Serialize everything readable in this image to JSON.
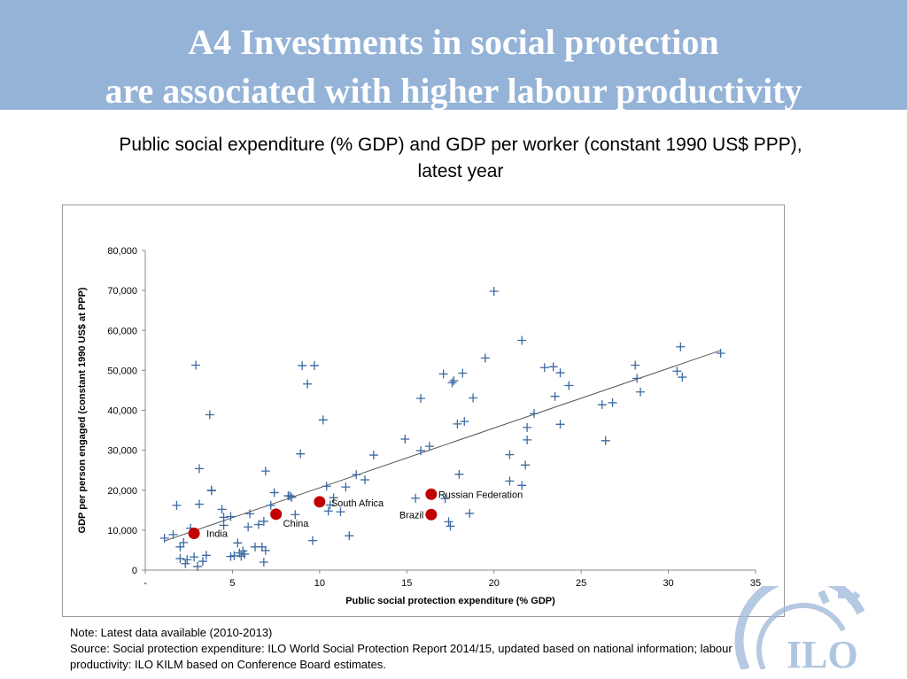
{
  "slide": {
    "title_line1": "A4   Investments in social protection",
    "title_line2": "are associated with higher labour productivity",
    "subtitle_line1": "Public social expenditure (% GDP) and GDP per worker (constant 1990 US$ PPP),",
    "subtitle_line2": "latest year",
    "note_line1": "Note:  Latest data available (2010-2013)",
    "note_line2": "Source: Social protection expenditure: ILO World Social Protection Report 2014/15, updated based on national information; labour",
    "note_line3": "productivity: ILO KILM based on Conference Board estimates.",
    "logo_text": "ILO"
  },
  "colors": {
    "banner": "#95b3d7",
    "marker": "#3b6aa0",
    "highlight": "#c00000",
    "trendline": "#555555"
  },
  "chart_data": {
    "type": "scatter",
    "xlabel": "Public social protection expenditure (% GDP)",
    "ylabel": "GDP per person engaged (constant 1990 US$ at PPP)",
    "xlim": [
      0,
      35
    ],
    "ylim": [
      0,
      80000
    ],
    "x_ticks": [
      {
        "value": 0,
        "label": "-"
      },
      {
        "value": 5,
        "label": "5"
      },
      {
        "value": 10,
        "label": "10"
      },
      {
        "value": 15,
        "label": "15"
      },
      {
        "value": 20,
        "label": "20"
      },
      {
        "value": 25,
        "label": "25"
      },
      {
        "value": 30,
        "label": "30"
      },
      {
        "value": 35,
        "label": "35"
      }
    ],
    "y_ticks": [
      {
        "value": 0,
        "label": "0"
      },
      {
        "value": 10000,
        "label": "10,000"
      },
      {
        "value": 20000,
        "label": "20,000"
      },
      {
        "value": 30000,
        "label": "30,000"
      },
      {
        "value": 40000,
        "label": "40,000"
      },
      {
        "value": 50000,
        "label": "50,000"
      },
      {
        "value": 60000,
        "label": "60,000"
      },
      {
        "value": 70000,
        "label": "70,000"
      },
      {
        "value": 80000,
        "label": "80,000"
      }
    ],
    "trendline": {
      "x": [
        1.1,
        33
      ],
      "y": [
        7300,
        55000
      ]
    },
    "points": [
      [
        1.1,
        8000
      ],
      [
        1.6,
        8900
      ],
      [
        1.8,
        16200
      ],
      [
        2.0,
        5800
      ],
      [
        2.0,
        2900
      ],
      [
        2.2,
        6900
      ],
      [
        2.3,
        1600
      ],
      [
        2.4,
        2600
      ],
      [
        2.6,
        10500
      ],
      [
        2.8,
        3300
      ],
      [
        2.9,
        51300
      ],
      [
        3.0,
        900
      ],
      [
        3.1,
        16500
      ],
      [
        3.1,
        25400
      ],
      [
        3.3,
        2200
      ],
      [
        3.5,
        3700
      ],
      [
        3.7,
        38900
      ],
      [
        3.8,
        19900
      ],
      [
        3.8,
        20000
      ],
      [
        4.4,
        15200
      ],
      [
        4.5,
        11200
      ],
      [
        4.5,
        13200
      ],
      [
        4.9,
        3400
      ],
      [
        4.9,
        13400
      ],
      [
        5.1,
        3600
      ],
      [
        5.3,
        6800
      ],
      [
        5.4,
        4300
      ],
      [
        5.5,
        3500
      ],
      [
        5.6,
        4800
      ],
      [
        5.7,
        4000
      ],
      [
        5.9,
        10800
      ],
      [
        6.0,
        14100
      ],
      [
        6.3,
        5800
      ],
      [
        6.5,
        11400
      ],
      [
        6.7,
        5800
      ],
      [
        6.8,
        12200
      ],
      [
        6.8,
        2000
      ],
      [
        6.9,
        24800
      ],
      [
        6.9,
        4900
      ],
      [
        7.2,
        16200
      ],
      [
        7.4,
        19400
      ],
      [
        8.2,
        18600
      ],
      [
        8.3,
        18600
      ],
      [
        8.4,
        18200
      ],
      [
        8.6,
        13900
      ],
      [
        8.9,
        29100
      ],
      [
        9.0,
        51200
      ],
      [
        9.3,
        46600
      ],
      [
        9.6,
        7400
      ],
      [
        9.7,
        51200
      ],
      [
        10.2,
        37600
      ],
      [
        10.4,
        21000
      ],
      [
        10.5,
        14800
      ],
      [
        10.6,
        16300
      ],
      [
        10.8,
        18100
      ],
      [
        11.2,
        14600
      ],
      [
        11.5,
        20800
      ],
      [
        11.7,
        8600
      ],
      [
        12.1,
        23900
      ],
      [
        12.6,
        22600
      ],
      [
        13.1,
        28800
      ],
      [
        14.9,
        32800
      ],
      [
        15.5,
        18000
      ],
      [
        15.8,
        29900
      ],
      [
        15.8,
        43000
      ],
      [
        16.3,
        31000
      ],
      [
        17.1,
        49100
      ],
      [
        17.2,
        17900
      ],
      [
        17.4,
        12100
      ],
      [
        17.5,
        11000
      ],
      [
        17.6,
        46900
      ],
      [
        17.7,
        47400
      ],
      [
        17.9,
        36600
      ],
      [
        18.0,
        24000
      ],
      [
        18.2,
        49300
      ],
      [
        18.3,
        37200
      ],
      [
        18.6,
        14200
      ],
      [
        18.8,
        43100
      ],
      [
        19.5,
        53100
      ],
      [
        20.0,
        69800
      ],
      [
        20.9,
        28900
      ],
      [
        20.9,
        22300
      ],
      [
        21.6,
        57500
      ],
      [
        21.6,
        21200
      ],
      [
        21.8,
        26300
      ],
      [
        21.9,
        35700
      ],
      [
        21.9,
        32600
      ],
      [
        22.3,
        39200
      ],
      [
        22.9,
        50700
      ],
      [
        23.4,
        50900
      ],
      [
        23.5,
        43500
      ],
      [
        23.8,
        49400
      ],
      [
        23.8,
        36500
      ],
      [
        24.3,
        46200
      ],
      [
        26.2,
        41400
      ],
      [
        26.4,
        32400
      ],
      [
        26.8,
        41900
      ],
      [
        28.1,
        51300
      ],
      [
        28.2,
        48000
      ],
      [
        28.4,
        44600
      ],
      [
        30.5,
        49800
      ],
      [
        30.7,
        55900
      ],
      [
        30.8,
        48300
      ],
      [
        33.0,
        54300
      ]
    ],
    "highlighted": [
      {
        "name": "India",
        "x": 2.8,
        "y": 9200
      },
      {
        "name": "China",
        "x": 7.5,
        "y": 14000
      },
      {
        "name": "South Africa",
        "x": 10.0,
        "y": 17100
      },
      {
        "name": "Russian Federation",
        "x": 16.4,
        "y": 19000
      },
      {
        "name": "Brazil",
        "x": 16.4,
        "y": 13900
      }
    ]
  }
}
